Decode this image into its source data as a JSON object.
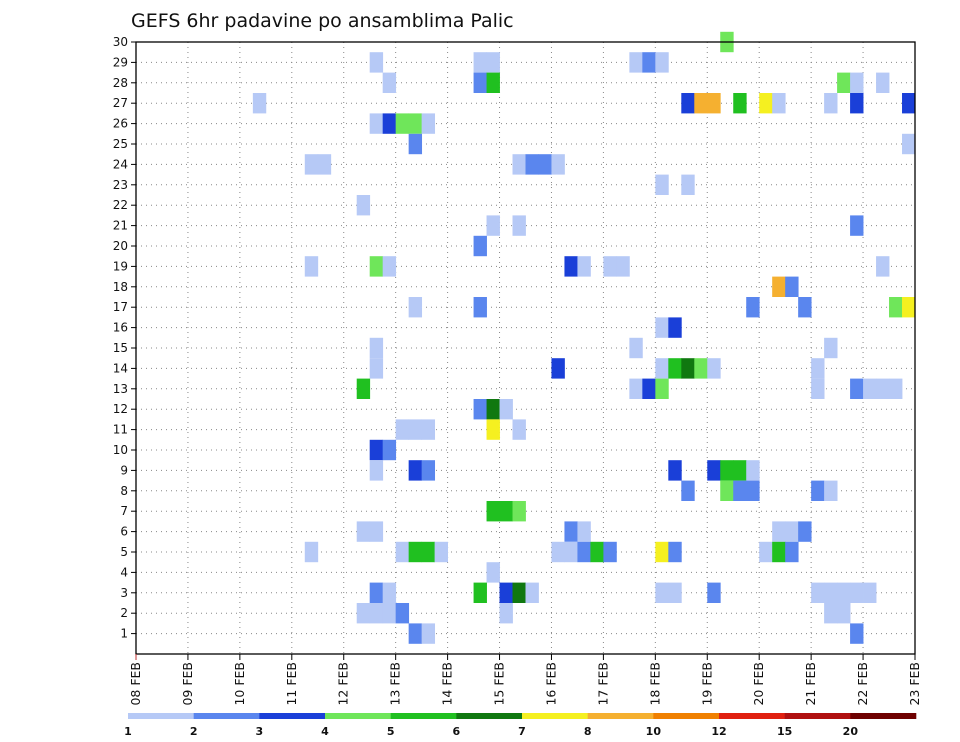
{
  "chart_data": {
    "type": "heatmap",
    "title": "GEFS 6hr padavine po ansamblima Palic",
    "x_ticks": [
      "08 FEB",
      "09 FEB",
      "10 FEB",
      "11 FEB",
      "12 FEB",
      "13 FEB",
      "14 FEB",
      "15 FEB",
      "16 FEB",
      "17 FEB",
      "18 FEB",
      "19 FEB",
      "20 FEB",
      "21 FEB",
      "22 FEB",
      "23 FEB"
    ],
    "x_range_days": [
      8,
      23
    ],
    "steps_per_day": 4,
    "y_ticks": [
      1,
      2,
      3,
      4,
      5,
      6,
      7,
      8,
      9,
      10,
      11,
      12,
      13,
      14,
      15,
      16,
      17,
      18,
      19,
      20,
      21,
      22,
      23,
      24,
      25,
      26,
      27,
      28,
      29,
      30
    ],
    "y_range": [
      0,
      30
    ],
    "grid": true,
    "legend": {
      "placement": "bottom",
      "labels": [
        "1",
        "2",
        "3",
        "4",
        "5",
        "6",
        "7",
        "8",
        "10",
        "12",
        "15",
        "20"
      ],
      "colors": [
        "#b6c9f6",
        "#5a86ee",
        "#1a3fd8",
        "#6fe65a",
        "#20c020",
        "#107810",
        "#f5f020",
        "#f5b030",
        "#f08000",
        "#e02010",
        "#b01010",
        "#6e0000"
      ]
    },
    "cells": [
      [
        29,
        12.5,
        1
      ],
      [
        29,
        14.5,
        1
      ],
      [
        29,
        14.75,
        1
      ],
      [
        29,
        17.5,
        1
      ],
      [
        29,
        17.75,
        2
      ],
      [
        29,
        18,
        1
      ],
      [
        28,
        12.75,
        1
      ],
      [
        28,
        14.5,
        2
      ],
      [
        28,
        14.75,
        5
      ],
      [
        28,
        21.5,
        4
      ],
      [
        28,
        21.75,
        1
      ],
      [
        28,
        22.25,
        1
      ],
      [
        27,
        10.25,
        1
      ],
      [
        27,
        18.5,
        3
      ],
      [
        27,
        18.75,
        8
      ],
      [
        27,
        19,
        8
      ],
      [
        27,
        19.5,
        5
      ],
      [
        27,
        20,
        7
      ],
      [
        27,
        20.25,
        1
      ],
      [
        27,
        21.25,
        1
      ],
      [
        27,
        21.75,
        3
      ],
      [
        27,
        22.75,
        3
      ],
      [
        26,
        12.5,
        1
      ],
      [
        26,
        12.75,
        3
      ],
      [
        26,
        13,
        4
      ],
      [
        26,
        13.25,
        4
      ],
      [
        26,
        13.5,
        1
      ],
      [
        25,
        13.25,
        2
      ],
      [
        25,
        22.75,
        1
      ],
      [
        24,
        11.25,
        1
      ],
      [
        24,
        11.5,
        1
      ],
      [
        24,
        15.25,
        1
      ],
      [
        24,
        15.5,
        2
      ],
      [
        24,
        15.75,
        2
      ],
      [
        24,
        16,
        1
      ],
      [
        23,
        18,
        1
      ],
      [
        23,
        18.5,
        1
      ],
      [
        22,
        12.25,
        1
      ],
      [
        21,
        14.75,
        1
      ],
      [
        21,
        15.25,
        1
      ],
      [
        21,
        21.75,
        2
      ],
      [
        20,
        14.5,
        2
      ],
      [
        19,
        11.25,
        1
      ],
      [
        19,
        12.5,
        4
      ],
      [
        19,
        12.75,
        1
      ],
      [
        19,
        16.25,
        3
      ],
      [
        19,
        16.5,
        1
      ],
      [
        19,
        17,
        1
      ],
      [
        19,
        17.25,
        1
      ],
      [
        19,
        22.25,
        1
      ],
      [
        18,
        20.25,
        8
      ],
      [
        18,
        20.5,
        2
      ],
      [
        17,
        13.25,
        1
      ],
      [
        17,
        14.5,
        2
      ],
      [
        17,
        19.75,
        2
      ],
      [
        17,
        20.75,
        2
      ],
      [
        17,
        22.5,
        4
      ],
      [
        17,
        22.75,
        7
      ],
      [
        16,
        18,
        1
      ],
      [
        16,
        18.25,
        3
      ],
      [
        15,
        12.5,
        1
      ],
      [
        15,
        17.5,
        1
      ],
      [
        15,
        21.25,
        1
      ],
      [
        14,
        12.5,
        1
      ],
      [
        14,
        16,
        3
      ],
      [
        14,
        18,
        1
      ],
      [
        14,
        18.25,
        5
      ],
      [
        14,
        18.5,
        6
      ],
      [
        14,
        18.75,
        4
      ],
      [
        14,
        19,
        1
      ],
      [
        14,
        21,
        1
      ],
      [
        13,
        12.25,
        5
      ],
      [
        13,
        17.5,
        1
      ],
      [
        13,
        17.75,
        3
      ],
      [
        13,
        18,
        4
      ],
      [
        13,
        21,
        1
      ],
      [
        13,
        21.75,
        2
      ],
      [
        13,
        22,
        1
      ],
      [
        13,
        22.25,
        1
      ],
      [
        13,
        22.5,
        1
      ],
      [
        12,
        14.5,
        2
      ],
      [
        12,
        14.75,
        6
      ],
      [
        12,
        15,
        1
      ],
      [
        11,
        13,
        1
      ],
      [
        11,
        13.25,
        1
      ],
      [
        11,
        13.5,
        1
      ],
      [
        11,
        14.75,
        7
      ],
      [
        11,
        15.25,
        1
      ],
      [
        10,
        12.5,
        3
      ],
      [
        10,
        12.75,
        2
      ],
      [
        9,
        12.5,
        1
      ],
      [
        9,
        13.25,
        3
      ],
      [
        9,
        13.5,
        2
      ],
      [
        9,
        18.25,
        3
      ],
      [
        9,
        19,
        3
      ],
      [
        9,
        19.25,
        5
      ],
      [
        9,
        19.5,
        5
      ],
      [
        9,
        19.75,
        1
      ],
      [
        8,
        18.5,
        2
      ],
      [
        8,
        19.25,
        4
      ],
      [
        8,
        19.5,
        2
      ],
      [
        8,
        19.75,
        2
      ],
      [
        8,
        21,
        2
      ],
      [
        8,
        21.25,
        1
      ],
      [
        7,
        14.75,
        5
      ],
      [
        7,
        15,
        5
      ],
      [
        7,
        15.25,
        4
      ],
      [
        6,
        12.25,
        1
      ],
      [
        6,
        12.5,
        1
      ],
      [
        6,
        16.25,
        2
      ],
      [
        6,
        16.5,
        1
      ],
      [
        6,
        20.25,
        1
      ],
      [
        6,
        20.5,
        1
      ],
      [
        6,
        20.75,
        2
      ],
      [
        5,
        11.25,
        1
      ],
      [
        5,
        13,
        1
      ],
      [
        5,
        13.25,
        5
      ],
      [
        5,
        13.5,
        5
      ],
      [
        5,
        13.75,
        1
      ],
      [
        5,
        16,
        1
      ],
      [
        5,
        16.25,
        1
      ],
      [
        5,
        16.5,
        2
      ],
      [
        5,
        16.75,
        5
      ],
      [
        5,
        17,
        2
      ],
      [
        5,
        18,
        7
      ],
      [
        5,
        18.25,
        2
      ],
      [
        5,
        20,
        1
      ],
      [
        5,
        20.25,
        5
      ],
      [
        5,
        20.5,
        2
      ],
      [
        4,
        14.75,
        1
      ],
      [
        3,
        12.5,
        2
      ],
      [
        3,
        12.75,
        1
      ],
      [
        3,
        14.5,
        5
      ],
      [
        3,
        15,
        3
      ],
      [
        3,
        15.25,
        6
      ],
      [
        3,
        15.5,
        1
      ],
      [
        3,
        18,
        1
      ],
      [
        3,
        18.25,
        1
      ],
      [
        3,
        19,
        2
      ],
      [
        3,
        21,
        1
      ],
      [
        3,
        21.25,
        1
      ],
      [
        3,
        21.5,
        1
      ],
      [
        3,
        21.75,
        1
      ],
      [
        3,
        22,
        1
      ],
      [
        2,
        12.25,
        1
      ],
      [
        2,
        12.5,
        1
      ],
      [
        2,
        12.75,
        1
      ],
      [
        2,
        13,
        2
      ],
      [
        2,
        15,
        1
      ],
      [
        2,
        21.25,
        1
      ],
      [
        2,
        21.5,
        1
      ],
      [
        1,
        13.25,
        2
      ],
      [
        1,
        13.5,
        1
      ],
      [
        1,
        21.75,
        2
      ],
      [
        30,
        19.25,
        4
      ]
    ]
  }
}
